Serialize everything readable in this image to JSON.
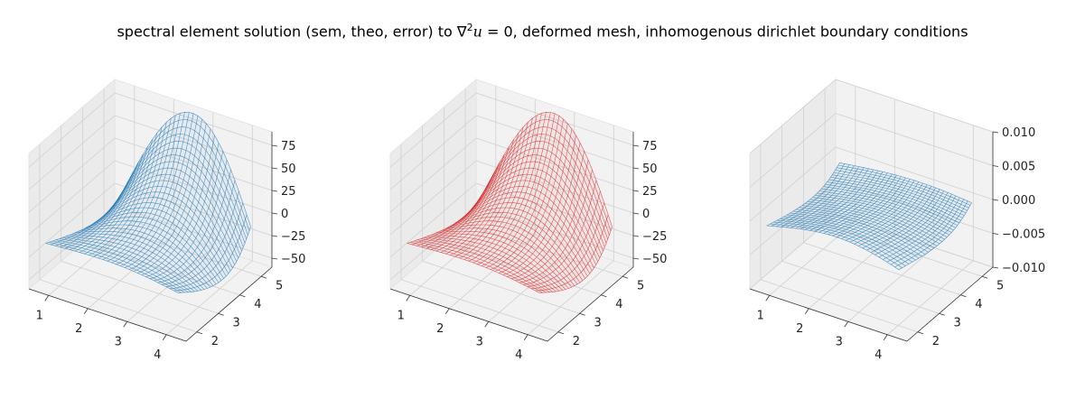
{
  "title": {
    "before": "spectral element solution (sem, theo, error) to ∇",
    "sup": "2",
    "var": "u",
    "after": " = 0, deformed mesh, inhomogenous dirichlet boundary conditions"
  },
  "chart_data": [
    {
      "type": "surface",
      "name": "sem",
      "color": "#1f77b4",
      "x_ticks": [
        "1",
        "2",
        "3",
        "4"
      ],
      "y_ticks": [
        "2",
        "3",
        "4",
        "5"
      ],
      "z_ticks": [
        "75",
        "50",
        "25",
        "0",
        "−25",
        "−50"
      ],
      "xlim": [
        0.5,
        4.5
      ],
      "ylim": [
        1.5,
        5.5
      ],
      "zlim": [
        -60,
        90
      ],
      "grid": true
    },
    {
      "type": "surface",
      "name": "theo",
      "color": "#d62728",
      "x_ticks": [
        "1",
        "2",
        "3",
        "4"
      ],
      "y_ticks": [
        "2",
        "3",
        "4",
        "5"
      ],
      "z_ticks": [
        "75",
        "50",
        "25",
        "0",
        "−25",
        "−50"
      ],
      "xlim": [
        0.5,
        4.5
      ],
      "ylim": [
        1.5,
        5.5
      ],
      "zlim": [
        -60,
        90
      ],
      "grid": true
    },
    {
      "type": "surface",
      "name": "error",
      "color": "#1f77b4",
      "x_ticks": [
        "1",
        "2",
        "3",
        "4"
      ],
      "y_ticks": [
        "2",
        "3",
        "4",
        "5"
      ],
      "z_ticks": [
        "0.010",
        "0.005",
        "0.000",
        "−0.005",
        "−0.010"
      ],
      "xlim": [
        0.5,
        4.5
      ],
      "ylim": [
        1.5,
        5.5
      ],
      "zlim": [
        -0.01,
        0.01
      ],
      "grid": true
    }
  ]
}
